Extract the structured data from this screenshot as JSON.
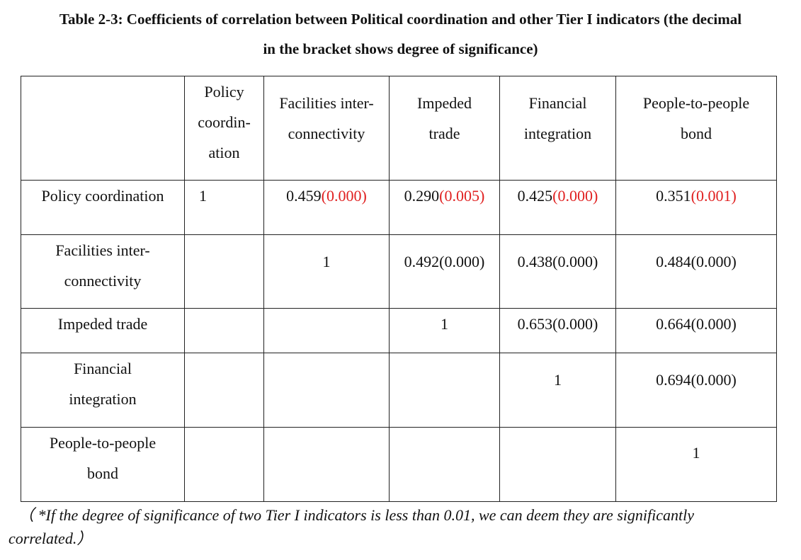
{
  "caption": {
    "line1": "Table 2-3: Coefficients of correlation between Political coordination and other Tier I indicators (the decimal",
    "line2": "in the bracket shows degree of significance)"
  },
  "header": {
    "col1": [
      "Policy",
      "coordin-",
      "ation"
    ],
    "col2": [
      "Facilities inter-",
      "connectivity"
    ],
    "col3": [
      "Impeded",
      "trade"
    ],
    "col4": [
      "Financial",
      "integration"
    ],
    "col5": [
      "People-to-people",
      "bond"
    ]
  },
  "rows": [
    {
      "label": [
        "Policy coordination"
      ],
      "c1": "1",
      "c2": {
        "coef": "0.459",
        "sig": "(0.000)"
      },
      "c3": {
        "coef": "0.290",
        "sig": "(0.005)"
      },
      "c4": {
        "coef": "0.425",
        "sig": "(0.000)"
      },
      "c5": {
        "coef": "0.351",
        "sig": "(0.001)"
      }
    },
    {
      "label": [
        "Facilities inter-",
        "connectivity"
      ],
      "c2": "1",
      "c3": "0.492(0.000)",
      "c4": "0.438(0.000)",
      "c5": "0.484(0.000)"
    },
    {
      "label": [
        "Impeded trade"
      ],
      "c3": "1",
      "c4": "0.653(0.000)",
      "c5": "0.664(0.000)"
    },
    {
      "label": [
        "Financial",
        "integration"
      ],
      "c4": "1",
      "c5": "0.694(0.000)"
    },
    {
      "label": [
        "People-to-people",
        "bond"
      ],
      "c5": "1"
    }
  ],
  "colors": {
    "significance_highlight": "#e02020"
  },
  "note": {
    "line1": "（ *If the degree of significance of two Tier I indicators is less than 0.01, we can deem they are significantly",
    "line2": "correlated.）"
  }
}
